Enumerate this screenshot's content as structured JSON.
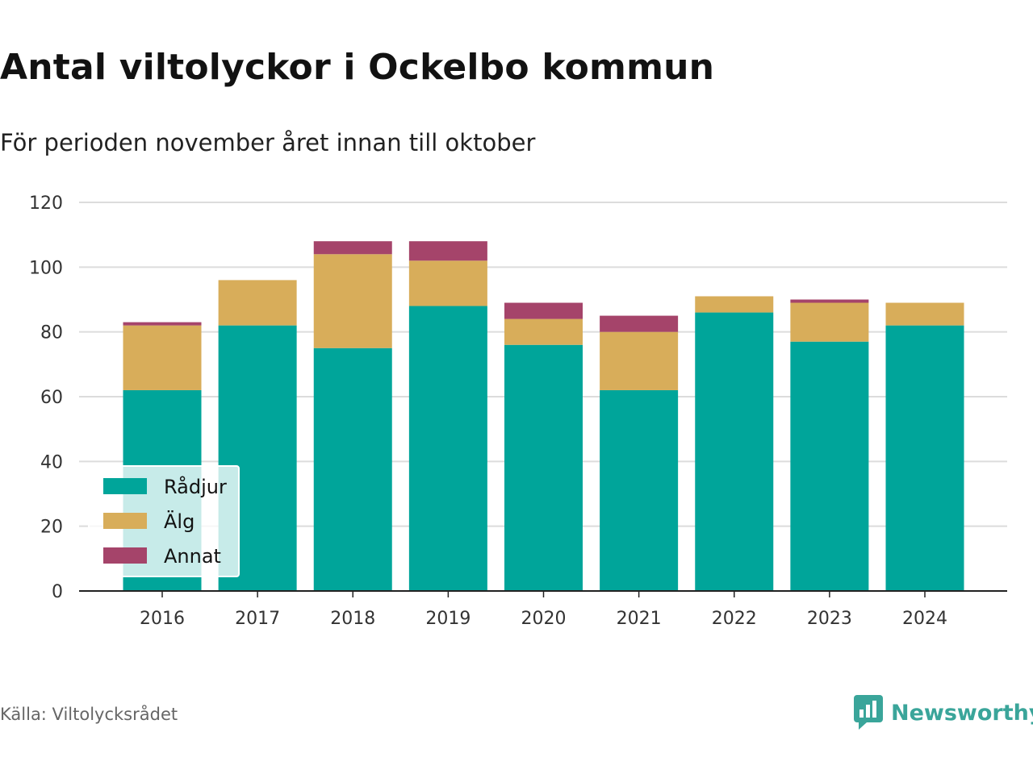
{
  "title": "Antal viltolyckor i Ockelbo kommun",
  "subtitle": "För perioden november året innan till oktober",
  "source": "Källa: Viltolycksrådet",
  "brand": "Newsworthy",
  "chart_data": {
    "type": "bar",
    "stacked": true,
    "categories": [
      "2016",
      "2017",
      "2018",
      "2019",
      "2020",
      "2021",
      "2022",
      "2023",
      "2024"
    ],
    "series": [
      {
        "name": "Rådjur",
        "color": "#00a59a",
        "values": [
          62,
          82,
          75,
          88,
          76,
          62,
          86,
          77,
          82
        ]
      },
      {
        "name": "Älg",
        "color": "#d8ad5a",
        "values": [
          20,
          14,
          29,
          14,
          8,
          18,
          5,
          12,
          7
        ]
      },
      {
        "name": "Annat",
        "color": "#a5446a",
        "values": [
          1,
          0,
          4,
          6,
          5,
          5,
          0,
          1,
          0
        ]
      }
    ],
    "ylim": [
      0,
      120
    ],
    "yticks": [
      0,
      20,
      40,
      60,
      80,
      100,
      120
    ],
    "grid": true,
    "legend_position": "bottom-left"
  }
}
